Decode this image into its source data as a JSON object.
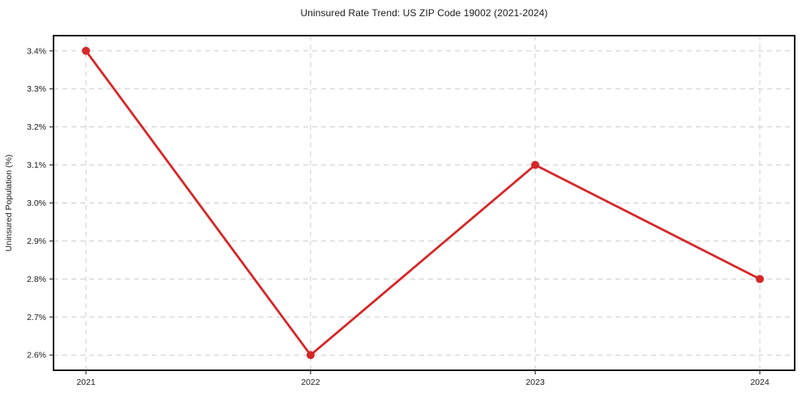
{
  "chart_data": {
    "type": "line",
    "title": "Uninsured Rate Trend: US ZIP Code 19002 (2021-2024)",
    "xlabel": "",
    "ylabel": "Uninsured Population (%)",
    "x": [
      "2021",
      "2022",
      "2023",
      "2024"
    ],
    "series": [
      {
        "name": "uninsured-rate",
        "values": [
          3.4,
          2.6,
          3.1,
          2.8
        ],
        "color": "#d62728",
        "marker": "circle",
        "line_width": 2.8,
        "marker_radius": 5
      }
    ],
    "x_tick_labels": [
      "2021",
      "2022",
      "2023",
      "2024"
    ],
    "y_ticks": [
      2.6,
      2.7,
      2.8,
      2.9,
      3.0,
      3.1,
      3.2,
      3.3,
      3.4
    ],
    "y_tick_labels": [
      "2.6%",
      "2.7%",
      "2.8%",
      "2.9%",
      "3.0%",
      "3.1%",
      "3.2%",
      "3.3%",
      "3.4%"
    ],
    "ylim": [
      2.56,
      3.44
    ],
    "grid": true,
    "grid_style": "dashed",
    "grid_color": "#cccccc",
    "axis_frame_color": "#000000",
    "tick_color": "#333333",
    "text_color": "#1a1a1a",
    "legend": "none",
    "background": "#ffffff"
  }
}
